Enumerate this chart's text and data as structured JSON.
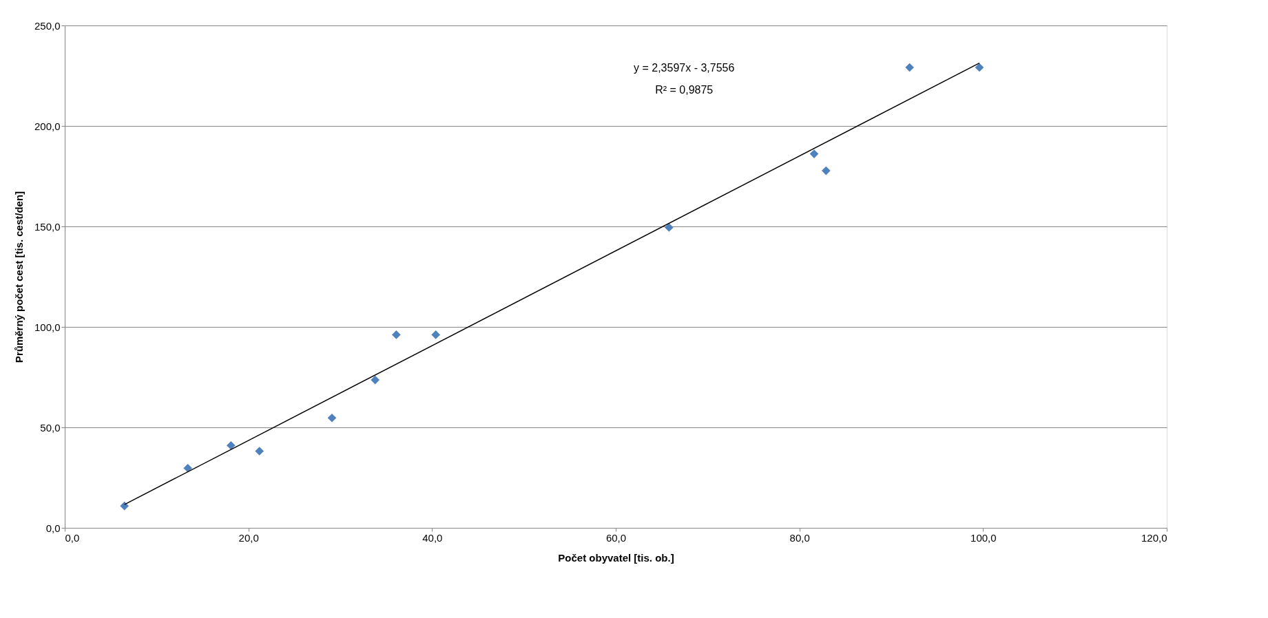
{
  "chart_data": {
    "type": "scatter",
    "xlabel": "Počet obyvatel [tis. ob.]",
    "ylabel": "Průměrný počet cest [tis. cest/den]",
    "annotations": [
      "y = 2,3597x - 3,7556",
      "R² = 0,9875"
    ],
    "xlim": [
      0,
      120
    ],
    "ylim": [
      0,
      250
    ],
    "xticks": [
      {
        "value": 0,
        "label": "0,0"
      },
      {
        "value": 20,
        "label": "20,0"
      },
      {
        "value": 40,
        "label": "40,0"
      },
      {
        "value": 60,
        "label": "60,0"
      },
      {
        "value": 80,
        "label": "80,0"
      },
      {
        "value": 100,
        "label": "100,0"
      },
      {
        "value": 120,
        "label": "120,0"
      }
    ],
    "yticks": [
      {
        "value": 0,
        "label": "0,0"
      },
      {
        "value": 50,
        "label": "50,0"
      },
      {
        "value": 100,
        "label": "100,0"
      },
      {
        "value": 150,
        "label": "150,0"
      },
      {
        "value": 200,
        "label": "200,0"
      },
      {
        "value": 250,
        "label": "250,0"
      }
    ],
    "grid": "y",
    "marker": "diamond",
    "series": [
      {
        "type": "scatter",
        "color": "#4f81bd",
        "x": [
          6.5,
          13.4,
          18.1,
          21.2,
          29.1,
          33.8,
          36.1,
          40.4,
          65.8,
          81.6,
          82.9,
          92.0,
          99.6
        ],
        "values": [
          10.9,
          29.7,
          41.0,
          38.2,
          54.7,
          73.6,
          96.1,
          96.1,
          149.5,
          186.1,
          177.7,
          229.1,
          229.1
        ]
      },
      {
        "type": "line",
        "color": "#000000",
        "marker": "none",
        "line_style": "solid",
        "x": [
          6.5,
          99.6
        ],
        "values": [
          11.6,
          231.3
        ]
      }
    ]
  }
}
